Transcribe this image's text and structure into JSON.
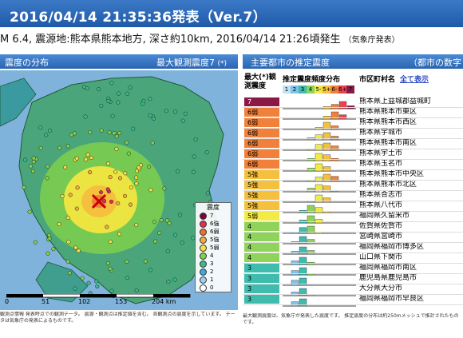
{
  "header": {
    "title": "2016/04/14 21:35:36発表（Ver.7）"
  },
  "quake": {
    "text": "M 6.4, 震源地:熊本県熊本地方, 深さ約10km, 2016/04/14 21:26頃発生",
    "source": "（気象庁発表）"
  },
  "left_panel": {
    "title": "震度の分布",
    "max_label": "最大観測震度7",
    "max_note": "(*)"
  },
  "right_panel": {
    "title": "主要都市の推定震度",
    "extra": "（都市の数字"
  },
  "map": {
    "scale_ticks": [
      "0",
      "51",
      "102",
      "153",
      "204 km"
    ],
    "legend_title": "震度",
    "legend": [
      {
        "label": "7",
        "color": "#800040"
      },
      {
        "label": "6強",
        "color": "#e0304a"
      },
      {
        "label": "6弱",
        "color": "#f06f2b"
      },
      {
        "label": "5強",
        "color": "#f4a93a"
      },
      {
        "label": "5弱",
        "color": "#f5e040"
      },
      {
        "label": "4",
        "color": "#7fd04c"
      },
      {
        "label": "3",
        "color": "#37b98a"
      },
      {
        "label": "2",
        "color": "#3fa7d8"
      },
      {
        "label": "1",
        "color": "#9ad0ee"
      },
      {
        "label": "0",
        "color": "#ffffff"
      }
    ]
  },
  "notes_left": "観測点情報 発表時点での観測データ。 震源・観測点は推定値を含む。 各観測点の震度を示しています。 データは気象庁の発表によるものです。",
  "notes_right": "最大観測震度は、気象庁が発表した震度です。 推定震度の分布は約250mメッシュで推計されたものです。",
  "table": {
    "col_intensity": "最大(*)観測震度",
    "col_dist": "推定震度頻度分布",
    "col_city": "市区町村名",
    "show_all": "全て表示",
    "legend_cells": [
      {
        "label": "1",
        "color": "#bfe3f5"
      },
      {
        "label": "2",
        "color": "#7cc4ea"
      },
      {
        "label": "3",
        "color": "#3fbcae"
      },
      {
        "label": "4",
        "color": "#8fd35b"
      },
      {
        "label": "5-",
        "color": "#f2ea45"
      },
      {
        "label": "5+",
        "color": "#f5c03e"
      },
      {
        "label": "6-",
        "color": "#f0803a"
      },
      {
        "label": "6+",
        "color": "#e8434f"
      },
      {
        "label": "7",
        "color": "#8a1a45"
      }
    ],
    "rows": [
      {
        "intensity": "7",
        "color": "#8a1a45",
        "city": "熊本県上益城郡益城町",
        "bars": [
          0,
          0,
          0,
          0,
          0,
          0.3,
          0.6,
          1,
          0.4
        ]
      },
      {
        "intensity": "6弱",
        "color": "#f0803a",
        "city": "熊本県熊本市東区",
        "bars": [
          0,
          0,
          0,
          0,
          0,
          0.4,
          1,
          0.6,
          0
        ]
      },
      {
        "intensity": "6弱",
        "color": "#f0803a",
        "city": "熊本県熊本市西区",
        "bars": [
          0,
          0,
          0,
          0,
          0.3,
          1,
          0.5,
          0,
          0
        ]
      },
      {
        "intensity": "6弱",
        "color": "#f0803a",
        "city": "熊本県宇城市",
        "bars": [
          0,
          0,
          0,
          0.3,
          0.7,
          1,
          0.5,
          0,
          0
        ]
      },
      {
        "intensity": "6弱",
        "color": "#f0803a",
        "city": "熊本県熊本市南区",
        "bars": [
          0,
          0,
          0,
          0.2,
          0.8,
          1,
          0.6,
          0,
          0
        ]
      },
      {
        "intensity": "6弱",
        "color": "#f0803a",
        "city": "熊本県宇土市",
        "bars": [
          0,
          0,
          0,
          0.3,
          1,
          0.8,
          0.3,
          0,
          0
        ]
      },
      {
        "intensity": "6弱",
        "color": "#f0803a",
        "city": "熊本県玉名市",
        "bars": [
          0,
          0,
          0,
          0.4,
          1,
          0.6,
          0,
          0,
          0
        ]
      },
      {
        "intensity": "5強",
        "color": "#f5c03e",
        "city": "熊本県熊本市中央区",
        "bars": [
          0,
          0,
          0,
          0.2,
          0.6,
          1,
          0.7,
          0,
          0
        ]
      },
      {
        "intensity": "5強",
        "color": "#f5c03e",
        "city": "熊本県熊本市北区",
        "bars": [
          0,
          0,
          0,
          0.5,
          1,
          0.8,
          0.2,
          0,
          0
        ]
      },
      {
        "intensity": "5強",
        "color": "#f5c03e",
        "city": "熊本県合志市",
        "bars": [
          0,
          0,
          0,
          0.2,
          1,
          0.6,
          0,
          0,
          0
        ]
      },
      {
        "intensity": "5強",
        "color": "#f5c03e",
        "city": "熊本県八代市",
        "bars": [
          0,
          0,
          0.3,
          1,
          0.7,
          0.2,
          0,
          0,
          0
        ]
      },
      {
        "intensity": "5弱",
        "color": "#f2ea45",
        "city": "福岡県久留米市",
        "bars": [
          0,
          0,
          0.4,
          1,
          0.5,
          0,
          0,
          0,
          0
        ]
      },
      {
        "intensity": "4",
        "color": "#8fd35b",
        "city": "佐賀県佐賀市",
        "bars": [
          0,
          0.2,
          0.8,
          1,
          0.2,
          0,
          0,
          0,
          0
        ]
      },
      {
        "intensity": "4",
        "color": "#8fd35b",
        "city": "宮崎県宮崎市",
        "bars": [
          0,
          0.3,
          1,
          0.6,
          0,
          0,
          0,
          0,
          0
        ]
      },
      {
        "intensity": "4",
        "color": "#8fd35b",
        "city": "福岡県福岡市博多区",
        "bars": [
          0,
          0.4,
          1,
          0.5,
          0,
          0,
          0,
          0,
          0
        ]
      },
      {
        "intensity": "4",
        "color": "#8fd35b",
        "city": "山口県下関市",
        "bars": [
          0,
          0.5,
          1,
          0.3,
          0,
          0,
          0,
          0,
          0
        ]
      },
      {
        "intensity": "3",
        "color": "#3fbcae",
        "city": "福岡県福岡市南区",
        "bars": [
          0,
          0.6,
          1,
          0.2,
          0,
          0,
          0,
          0,
          0
        ]
      },
      {
        "intensity": "3",
        "color": "#3fbcae",
        "city": "鹿児島県鹿児島市",
        "bars": [
          0,
          0.7,
          1,
          0,
          0,
          0,
          0,
          0,
          0
        ]
      },
      {
        "intensity": "3",
        "color": "#3fbcae",
        "city": "大分県大分市",
        "bars": [
          0,
          0.5,
          1,
          0.2,
          0,
          0,
          0,
          0,
          0
        ]
      },
      {
        "intensity": "3",
        "color": "#3fbcae",
        "city": "福岡県福岡市早良区",
        "bars": [
          0,
          0.6,
          1,
          0,
          0,
          0,
          0,
          0,
          0
        ]
      }
    ]
  }
}
